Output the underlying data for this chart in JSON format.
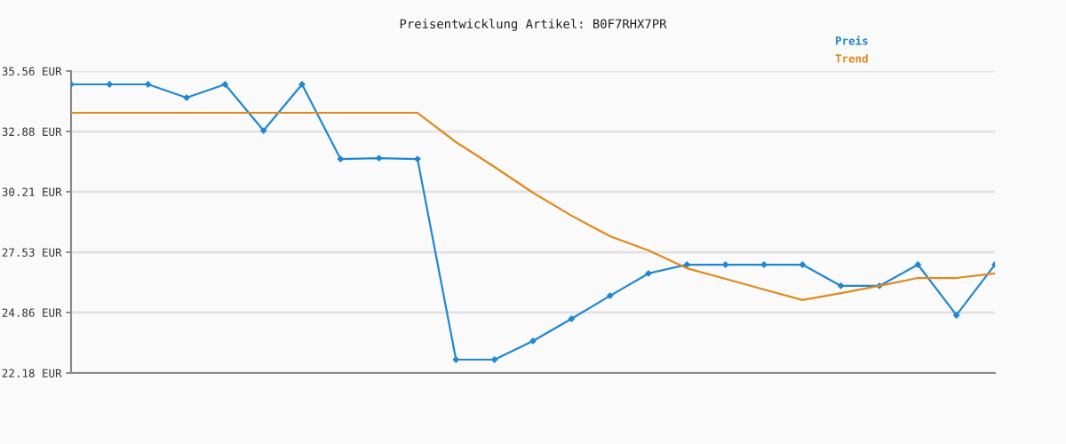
{
  "chart_data": {
    "type": "line",
    "title": "Preisentwicklung Artikel: B0F7RHX7PR",
    "categories": [
      null,
      null,
      null,
      null,
      null,
      null,
      null,
      null,
      null,
      null,
      null,
      null,
      null,
      null,
      null,
      null,
      null,
      null,
      null,
      null,
      null,
      null,
      null,
      null,
      null
    ],
    "series": [
      {
        "name": "Preis",
        "color": "#1f88d2",
        "marker": "diamond",
        "values": [
          34.97,
          34.97,
          34.97,
          34.38,
          34.97,
          32.92,
          34.97,
          31.66,
          31.7,
          31.66,
          22.77,
          22.77,
          23.6,
          24.58,
          25.6,
          26.59,
          26.98,
          26.98,
          26.98,
          26.98,
          26.04,
          26.04,
          26.98,
          24.74,
          26.98
        ]
      },
      {
        "name": "Trend",
        "color": "#e08a1e",
        "marker": "none",
        "values": [
          33.71,
          33.71,
          33.71,
          33.71,
          33.71,
          33.71,
          33.71,
          33.71,
          33.71,
          33.71,
          32.41,
          31.31,
          30.17,
          29.15,
          28.24,
          27.61,
          26.82,
          26.35,
          25.88,
          25.41,
          25.72,
          26.04,
          26.39,
          26.39,
          26.59
        ]
      }
    ],
    "ylim": [
      22.18,
      35.56
    ],
    "yticks": [
      {
        "value": 22.18,
        "label": "22.18 EUR"
      },
      {
        "value": 24.86,
        "label": "24.86 EUR"
      },
      {
        "value": 27.53,
        "label": "27.53 EUR"
      },
      {
        "value": 30.21,
        "label": "30.21 EUR"
      },
      {
        "value": 32.88,
        "label": "32.88 EUR"
      },
      {
        "value": 35.56,
        "label": "35.56 EUR"
      }
    ],
    "grid": "y",
    "legend": "top right"
  }
}
